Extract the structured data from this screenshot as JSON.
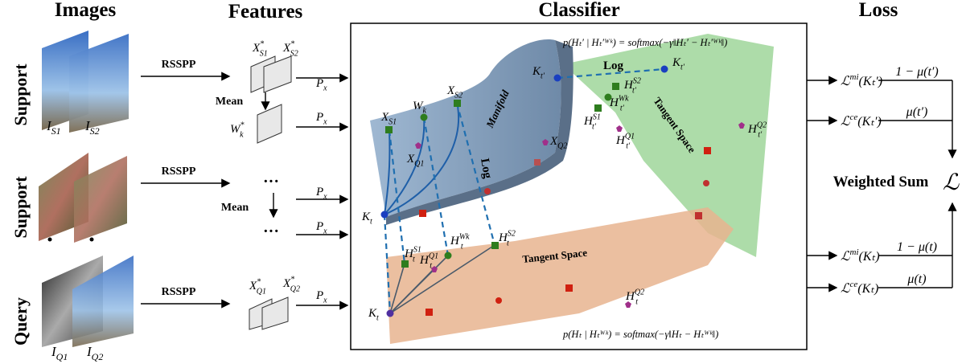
{
  "headers": {
    "images": "Images",
    "features": "Features",
    "classifier": "Classifier",
    "loss": "Loss"
  },
  "rows": [
    "Support",
    "Support",
    "Query"
  ],
  "images": [
    {
      "b": "I",
      "sub": "S1"
    },
    {
      "b": "I",
      "sub": "S2"
    },
    {
      "b": "I",
      "sub": "Q1"
    },
    {
      "b": "I",
      "sub": "Q2"
    }
  ],
  "rsspp": [
    "RSSPP",
    "RSSPP",
    "RSSPP"
  ],
  "features": {
    "xs1": {
      "b": "X",
      "sup": "*",
      "sub": "S1"
    },
    "xs2": {
      "b": "X",
      "sup": "*",
      "sub": "S2"
    },
    "mean1": "Mean",
    "wk": {
      "b": "W",
      "sup": "*",
      "sub": "k"
    },
    "dots1": "···",
    "mean2": "Mean",
    "dots2": "···",
    "xq1": {
      "b": "X",
      "sup": "*",
      "sub": "Q1"
    },
    "xq2": {
      "b": "X",
      "sup": "*",
      "sub": "Q2"
    }
  },
  "px": [
    {
      "b": "P",
      "sub": "x"
    },
    {
      "b": "P",
      "sub": "x"
    },
    {
      "b": "P",
      "sub": "x"
    },
    {
      "b": "P",
      "sub": "x"
    },
    {
      "b": "P",
      "sub": "x"
    }
  ],
  "classifier": {
    "formula_top": "p(Hₜ′ | Hₜ′ᵂᵏ) = softmax(−γ‖Hₜ′ − Hₜ′ᵂᵏ‖)",
    "formula_bottom": "p(Hₜ | Hₜᵂᵏ) = softmax(−γ‖Hₜ − Hₜᵂᵏ‖)",
    "log_top": "Log",
    "log_manifold": "Log",
    "manifold": "Manifold",
    "tangent_top": "Tangent Space",
    "tangent_bottom": "Tangent Space",
    "points": [
      {
        "b": "X",
        "sub": "S1"
      },
      {
        "b": "W",
        "sub": "k"
      },
      {
        "b": "X",
        "sub": "S2"
      },
      {
        "b": "X",
        "sub": "Q1"
      },
      {
        "b": "X",
        "sub": "Q2"
      },
      {
        "b": "K",
        "sub": "t"
      },
      {
        "b": "K",
        "sub": "t′"
      },
      {
        "b": "K",
        "sub": "t′"
      },
      {
        "b": "H",
        "sup": "S2",
        "sub": "t′"
      },
      {
        "b": "H",
        "sup": "Wk",
        "sub": "t′"
      },
      {
        "b": "H",
        "sup": "S1",
        "sub": "t′"
      },
      {
        "b": "H",
        "sup": "Q1",
        "sub": "t′"
      },
      {
        "b": "H",
        "sup": "Q2",
        "sub": "t′"
      },
      {
        "b": "K",
        "sub": "t"
      },
      {
        "b": "H",
        "sup": "S1",
        "sub": "t"
      },
      {
        "b": "H",
        "sup": "Q1",
        "sub": "t"
      },
      {
        "b": "H",
        "sup": "Wk",
        "sub": "t"
      },
      {
        "b": "H",
        "sup": "S2",
        "sub": "t"
      },
      {
        "b": "H",
        "sup": "Q2",
        "sub": "t"
      }
    ]
  },
  "loss": {
    "mi_tp": {
      "b": "ℒ",
      "sup": "mi",
      "rest": "(Kₜ′)"
    },
    "w_mi_tp": "1 − μ(t′)",
    "ce_tp": {
      "b": "ℒ",
      "sup": "ce",
      "rest": "(Kₜ′)"
    },
    "w_ce_tp": "μ(t′)",
    "weighted": "Weighted  Sum",
    "total": "ℒ",
    "mi_t": {
      "b": "ℒ",
      "sup": "mi",
      "rest": "(Kₜ)"
    },
    "w_mi_t": "1 − μ(t)",
    "ce_t": {
      "b": "ℒ",
      "sup": "ce",
      "rest": "(Kₜ)"
    },
    "w_ce_t": "μ(t)"
  }
}
